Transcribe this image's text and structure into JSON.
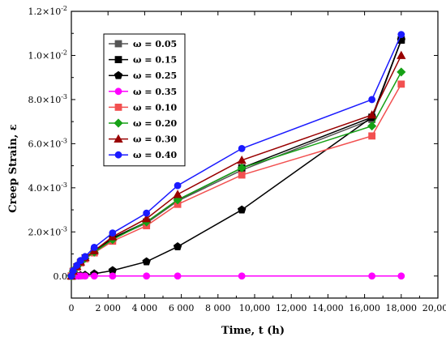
{
  "chart_data": {
    "type": "line",
    "xlabel": "Time, t (h)",
    "ylabel": "Creep Strain, ε",
    "xlim": [
      0,
      20000
    ],
    "ylim": [
      -0.001,
      0.012
    ],
    "grid": false,
    "legend_position": "top-left",
    "x_ticks": [
      0,
      2000,
      4000,
      6000,
      8000,
      10000,
      12000,
      14000,
      16000,
      18000,
      20000
    ],
    "x_tick_labels": [
      "0",
      "2 000",
      "4 000",
      "6 000",
      "8 000",
      "10,000",
      "12,000",
      "14,000",
      "16,000",
      "18,000",
      "20,000"
    ],
    "y_ticks": [
      0,
      0.002,
      0.004,
      0.006,
      0.008,
      0.01,
      0.012
    ],
    "y_tick_labels": [
      {
        "base": "0.0",
        "exp": ""
      },
      {
        "base": "2.0×10",
        "exp": "-3"
      },
      {
        "base": "4.0×10",
        "exp": "-3"
      },
      {
        "base": "6.0×10",
        "exp": "-3"
      },
      {
        "base": "8.0×10",
        "exp": "-3"
      },
      {
        "base": "1.0×10",
        "exp": "-2"
      },
      {
        "base": "1.2×10",
        "exp": "-2"
      }
    ],
    "series": [
      {
        "name": "ω = 0.05",
        "color": "#555555",
        "marker": "square",
        "x": [
          0,
          100,
          300,
          500,
          750,
          1250,
          2250,
          4100,
          5800,
          9300,
          16400,
          18000
        ],
        "y": [
          0,
          0.0002,
          0.0004,
          0.0006,
          0.0008,
          0.0011,
          0.0017,
          0.0024,
          0.0034,
          0.0048,
          0.0071,
          0.0107
        ]
      },
      {
        "name": "ω = 0.15",
        "color": "#000000",
        "marker": "square",
        "x": [
          0,
          100,
          300,
          500,
          750,
          1250,
          2250,
          4100,
          5800,
          9300,
          16400,
          18000
        ],
        "y": [
          0,
          0.00021,
          0.00042,
          0.00062,
          0.00082,
          0.00112,
          0.00172,
          0.00245,
          0.00345,
          0.0049,
          0.0072,
          0.0107
        ]
      },
      {
        "name": "ω = 0.25",
        "color": "#000000",
        "marker": "pentagon",
        "x": [
          0,
          100,
          300,
          500,
          750,
          1250,
          2250,
          4100,
          5800,
          9300,
          16400,
          18000
        ],
        "y": [
          0,
          0,
          1e-05,
          2e-05,
          4e-05,
          0.0001,
          0.00025,
          0.00065,
          0.00133,
          0.003,
          0.0072,
          0.0107
        ]
      },
      {
        "name": "ω = 0.35",
        "color": "#FF00FF",
        "marker": "circle",
        "x": [
          0,
          100,
          300,
          500,
          750,
          1250,
          2250,
          4100,
          5800,
          9300,
          16400,
          18000
        ],
        "y": [
          0,
          0,
          0,
          0,
          0,
          0,
          0,
          0,
          0,
          0,
          0,
          0
        ]
      },
      {
        "name": "ω = 0.10",
        "color": "#F25050",
        "marker": "square",
        "x": [
          0,
          100,
          300,
          500,
          750,
          1250,
          2250,
          4100,
          5800,
          9300,
          16400,
          18000
        ],
        "y": [
          0,
          0.0002,
          0.0004,
          0.0006,
          0.00078,
          0.00105,
          0.00158,
          0.00228,
          0.00325,
          0.00458,
          0.00635,
          0.0087
        ]
      },
      {
        "name": "ω = 0.20",
        "color": "#16A116",
        "marker": "diamond",
        "x": [
          0,
          100,
          300,
          500,
          750,
          1250,
          2250,
          4100,
          5800,
          9300,
          16400,
          18000
        ],
        "y": [
          0,
          0.00021,
          0.00042,
          0.00062,
          0.0008,
          0.00108,
          0.00165,
          0.00245,
          0.00345,
          0.0049,
          0.0068,
          0.00925
        ]
      },
      {
        "name": "ω = 0.30",
        "color": "#990000",
        "marker": "triangle",
        "x": [
          0,
          100,
          300,
          500,
          750,
          1250,
          2250,
          4100,
          5800,
          9300,
          16400,
          18000
        ],
        "y": [
          0,
          0.00022,
          0.00044,
          0.00064,
          0.00084,
          0.00115,
          0.00178,
          0.0026,
          0.0037,
          0.00525,
          0.0073,
          0.01
        ]
      },
      {
        "name": "ω = 0.40",
        "color": "#1A1AFF",
        "marker": "circle",
        "x": [
          0,
          100,
          300,
          500,
          750,
          1250,
          2250,
          4100,
          5800,
          9300,
          16400,
          18000
        ],
        "y": [
          0,
          0.00024,
          0.00048,
          0.0007,
          0.00088,
          0.0013,
          0.00195,
          0.00285,
          0.0041,
          0.00578,
          0.008,
          0.01095
        ]
      }
    ]
  }
}
